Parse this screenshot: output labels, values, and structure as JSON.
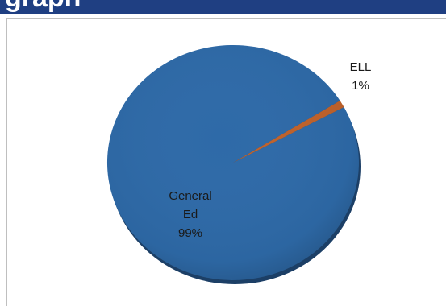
{
  "header": {
    "partial_title": "graph"
  },
  "chart_data": {
    "type": "pie",
    "categories": [
      "General Ed",
      "ELL"
    ],
    "values": [
      99,
      1
    ],
    "unit": "%",
    "labels": [
      {
        "lines": [
          "General",
          "Ed",
          "99%"
        ]
      },
      {
        "lines": [
          "ELL",
          "1%"
        ]
      }
    ],
    "colors": [
      "#2e6aa8",
      "#c0622b"
    ],
    "legend": "none"
  }
}
